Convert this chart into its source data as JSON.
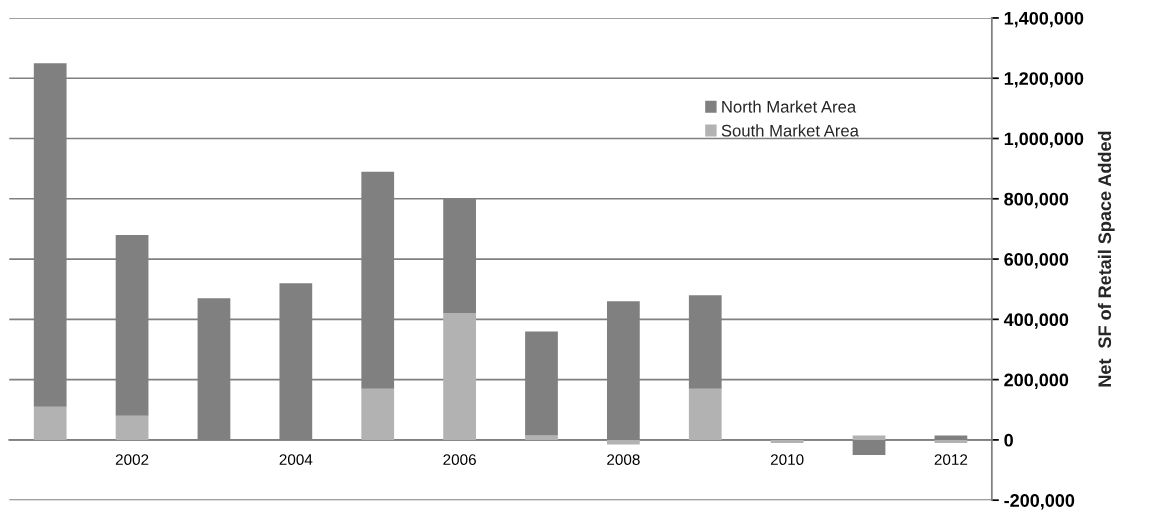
{
  "chart_data": {
    "type": "bar",
    "stacked": true,
    "ylabel": "Net  SF of Retail Space Added",
    "categories": [
      null,
      "2002",
      null,
      "2004",
      null,
      "2006",
      null,
      "2008",
      null,
      "2010",
      null,
      "2012"
    ],
    "series": [
      {
        "name": "South Market Area",
        "color": "#b2b2b2",
        "values": [
          110000,
          80000,
          0,
          0,
          170000,
          420000,
          15000,
          -15000,
          170000,
          -10000,
          15000,
          -10000
        ]
      },
      {
        "name": "North Market Area",
        "color": "#808080",
        "values": [
          1140000,
          600000,
          470000,
          520000,
          720000,
          380000,
          345000,
          460000,
          310000,
          0,
          -50000,
          15000
        ]
      }
    ],
    "ylim": [
      -200000,
      1400000
    ],
    "yticks": [
      {
        "value": -200000,
        "label": "-200,000"
      },
      {
        "value": 0,
        "label": "0"
      },
      {
        "value": 200000,
        "label": "200,000"
      },
      {
        "value": 400000,
        "label": "400,000"
      },
      {
        "value": 600000,
        "label": "600,000"
      },
      {
        "value": 800000,
        "label": "800,000"
      },
      {
        "value": 1000000,
        "label": "1,000,000"
      },
      {
        "value": 1200000,
        "label": "1,200,000"
      },
      {
        "value": 1400000,
        "label": "1,400,000"
      }
    ],
    "grid": "y",
    "legend": "top right"
  }
}
